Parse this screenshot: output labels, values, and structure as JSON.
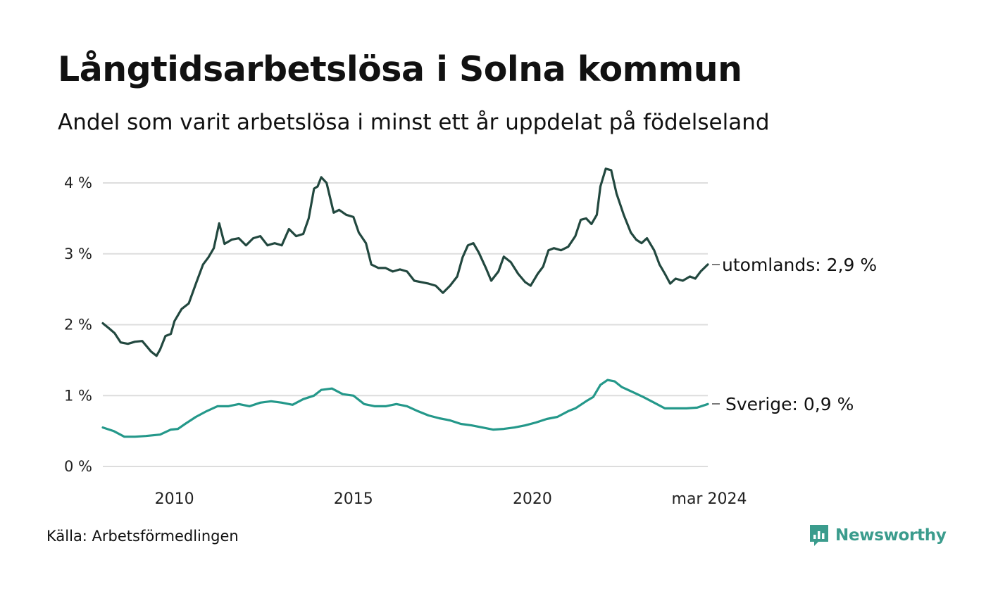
{
  "title": "Långtidsarbetslösa i Solna kommun",
  "subtitle": "Andel som varit arbetslösa i minst ett år uppdelat på födelseland",
  "source": "Källa: Arbetsförmedlingen",
  "brand": "Newsworthy",
  "colors": {
    "utomlands": "#22483f",
    "sverige": "#24988a",
    "grid": "#dddddd",
    "brand": "#3b9c8d"
  },
  "chart_data": {
    "type": "line",
    "title": "Långtidsarbetslösa i Solna kommun",
    "xlabel": "",
    "ylabel": "",
    "ylim": [
      0,
      4.3
    ],
    "xlim": [
      2008.0,
      2024.17
    ],
    "y_ticks": [
      0,
      1,
      2,
      3,
      4
    ],
    "y_tick_labels": [
      "0 %",
      "1 %",
      "2 %",
      "3 %",
      "4 %"
    ],
    "x_ticks": [
      2010,
      2015,
      2020,
      2024.17
    ],
    "x_tick_labels": [
      "2010",
      "2015",
      "2020",
      "mar 2024"
    ],
    "grid": true,
    "series": [
      {
        "name": "utomlands",
        "end_label": "utomlands: 2,9 %",
        "points": [
          [
            2008.0,
            2.02
          ],
          [
            2008.17,
            1.95
          ],
          [
            2008.33,
            1.88
          ],
          [
            2008.5,
            1.75
          ],
          [
            2008.7,
            1.73
          ],
          [
            2008.9,
            1.76
          ],
          [
            2009.1,
            1.77
          ],
          [
            2009.25,
            1.68
          ],
          [
            2009.35,
            1.62
          ],
          [
            2009.5,
            1.56
          ],
          [
            2009.6,
            1.65
          ],
          [
            2009.75,
            1.84
          ],
          [
            2009.9,
            1.87
          ],
          [
            2010.0,
            2.05
          ],
          [
            2010.2,
            2.22
          ],
          [
            2010.4,
            2.3
          ],
          [
            2010.6,
            2.58
          ],
          [
            2010.8,
            2.85
          ],
          [
            2010.95,
            2.95
          ],
          [
            2011.1,
            3.08
          ],
          [
            2011.25,
            3.43
          ],
          [
            2011.4,
            3.14
          ],
          [
            2011.6,
            3.2
          ],
          [
            2011.8,
            3.22
          ],
          [
            2012.0,
            3.12
          ],
          [
            2012.2,
            3.22
          ],
          [
            2012.4,
            3.25
          ],
          [
            2012.6,
            3.12
          ],
          [
            2012.8,
            3.15
          ],
          [
            2013.0,
            3.12
          ],
          [
            2013.2,
            3.35
          ],
          [
            2013.4,
            3.25
          ],
          [
            2013.6,
            3.28
          ],
          [
            2013.75,
            3.5
          ],
          [
            2013.9,
            3.92
          ],
          [
            2014.0,
            3.95
          ],
          [
            2014.1,
            4.08
          ],
          [
            2014.25,
            4.0
          ],
          [
            2014.45,
            3.58
          ],
          [
            2014.6,
            3.62
          ],
          [
            2014.8,
            3.55
          ],
          [
            2015.0,
            3.52
          ],
          [
            2015.15,
            3.3
          ],
          [
            2015.35,
            3.15
          ],
          [
            2015.5,
            2.85
          ],
          [
            2015.7,
            2.8
          ],
          [
            2015.9,
            2.8
          ],
          [
            2016.1,
            2.75
          ],
          [
            2016.3,
            2.78
          ],
          [
            2016.5,
            2.75
          ],
          [
            2016.7,
            2.62
          ],
          [
            2016.9,
            2.6
          ],
          [
            2017.1,
            2.58
          ],
          [
            2017.3,
            2.55
          ],
          [
            2017.5,
            2.45
          ],
          [
            2017.7,
            2.55
          ],
          [
            2017.9,
            2.68
          ],
          [
            2018.05,
            2.95
          ],
          [
            2018.2,
            3.12
          ],
          [
            2018.35,
            3.15
          ],
          [
            2018.5,
            3.02
          ],
          [
            2018.7,
            2.8
          ],
          [
            2018.85,
            2.62
          ],
          [
            2019.05,
            2.75
          ],
          [
            2019.2,
            2.96
          ],
          [
            2019.4,
            2.88
          ],
          [
            2019.6,
            2.72
          ],
          [
            2019.8,
            2.6
          ],
          [
            2019.95,
            2.55
          ],
          [
            2020.15,
            2.72
          ],
          [
            2020.3,
            2.82
          ],
          [
            2020.45,
            3.05
          ],
          [
            2020.6,
            3.08
          ],
          [
            2020.8,
            3.05
          ],
          [
            2021.0,
            3.1
          ],
          [
            2021.2,
            3.25
          ],
          [
            2021.35,
            3.48
          ],
          [
            2021.5,
            3.5
          ],
          [
            2021.65,
            3.42
          ],
          [
            2021.8,
            3.55
          ],
          [
            2021.9,
            3.95
          ],
          [
            2022.05,
            4.2
          ],
          [
            2022.2,
            4.18
          ],
          [
            2022.35,
            3.85
          ],
          [
            2022.55,
            3.55
          ],
          [
            2022.75,
            3.3
          ],
          [
            2022.9,
            3.2
          ],
          [
            2023.05,
            3.15
          ],
          [
            2023.2,
            3.22
          ],
          [
            2023.4,
            3.05
          ],
          [
            2023.55,
            2.85
          ],
          [
            2023.7,
            2.72
          ],
          [
            2023.85,
            2.58
          ],
          [
            2024.0,
            2.65
          ],
          [
            2024.2,
            2.62
          ],
          [
            2024.4,
            2.68
          ],
          [
            2024.55,
            2.65
          ],
          [
            2024.7,
            2.75
          ],
          [
            2024.9,
            2.85
          ]
        ]
      },
      {
        "name": "Sverige",
        "end_label": "Sverige: 0,9 %",
        "points": [
          [
            2008.0,
            0.55
          ],
          [
            2008.3,
            0.5
          ],
          [
            2008.6,
            0.42
          ],
          [
            2008.9,
            0.42
          ],
          [
            2009.2,
            0.43
          ],
          [
            2009.6,
            0.45
          ],
          [
            2009.9,
            0.52
          ],
          [
            2010.1,
            0.53
          ],
          [
            2010.3,
            0.6
          ],
          [
            2010.6,
            0.7
          ],
          [
            2010.9,
            0.78
          ],
          [
            2011.2,
            0.85
          ],
          [
            2011.5,
            0.85
          ],
          [
            2011.8,
            0.88
          ],
          [
            2012.1,
            0.85
          ],
          [
            2012.4,
            0.9
          ],
          [
            2012.7,
            0.92
          ],
          [
            2013.0,
            0.9
          ],
          [
            2013.3,
            0.87
          ],
          [
            2013.6,
            0.95
          ],
          [
            2013.9,
            1.0
          ],
          [
            2014.1,
            1.08
          ],
          [
            2014.4,
            1.1
          ],
          [
            2014.7,
            1.02
          ],
          [
            2015.0,
            1.0
          ],
          [
            2015.3,
            0.88
          ],
          [
            2015.6,
            0.85
          ],
          [
            2015.9,
            0.85
          ],
          [
            2016.2,
            0.88
          ],
          [
            2016.5,
            0.85
          ],
          [
            2016.8,
            0.78
          ],
          [
            2017.1,
            0.72
          ],
          [
            2017.4,
            0.68
          ],
          [
            2017.7,
            0.65
          ],
          [
            2018.0,
            0.6
          ],
          [
            2018.3,
            0.58
          ],
          [
            2018.6,
            0.55
          ],
          [
            2018.9,
            0.52
          ],
          [
            2019.2,
            0.53
          ],
          [
            2019.5,
            0.55
          ],
          [
            2019.8,
            0.58
          ],
          [
            2020.1,
            0.62
          ],
          [
            2020.4,
            0.67
          ],
          [
            2020.7,
            0.7
          ],
          [
            2021.0,
            0.78
          ],
          [
            2021.2,
            0.82
          ],
          [
            2021.5,
            0.92
          ],
          [
            2021.7,
            0.98
          ],
          [
            2021.9,
            1.15
          ],
          [
            2022.1,
            1.22
          ],
          [
            2022.3,
            1.2
          ],
          [
            2022.5,
            1.12
          ],
          [
            2022.8,
            1.05
          ],
          [
            2023.1,
            0.98
          ],
          [
            2023.4,
            0.9
          ],
          [
            2023.7,
            0.82
          ],
          [
            2024.0,
            0.82
          ],
          [
            2024.3,
            0.82
          ],
          [
            2024.6,
            0.83
          ],
          [
            2024.9,
            0.88
          ]
        ]
      }
    ]
  }
}
